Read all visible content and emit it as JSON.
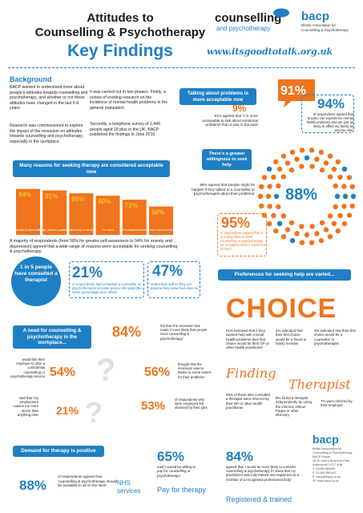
{
  "header": {
    "title_line1": "Attitudes to",
    "title_line2": "Counselling & Psychotherapy",
    "subtitle": "Key Findings",
    "logo_main": "counselling",
    "logo_sub": "and psychotherapy",
    "bacp": "bacp",
    "bacp_sub1": "British Association for",
    "bacp_sub2": "Counselling & Psychotherapy",
    "url": "www.itsgoodtotalk.org.uk"
  },
  "background": {
    "title": "Background",
    "p1": "BACP wanted to understand more about people's attitudes towards counselling and psychotherapy, and whether or not these attitudes have changed in the last 5-6 years.",
    "p2": "Research was commissioned to explore the impact of the recession on attitudes towards counselling and psychotherapy, especially in the workplace.",
    "p3": "It was carried out in two phases. Firstly, a review of existing research on the incidence of mental health problems in the general population.",
    "p4": "Secondly, a telephone survey of 1,440 people aged 18 plus in the UK. BACP published the findings in June 2010."
  },
  "reasons": {
    "banner": "Many reasons for seeking therapy are considered acceptable now",
    "footnote": "A majority of respondents (from 58% for greater self-awareness to 94% for anxiety and depression) agreed that a wide range of reasons were acceptable for seeking counselling & psychotherapy."
  },
  "chart_data": {
    "type": "bar",
    "categories": [
      "Anxiety & depression",
      "Drugs, alcohol or gambling",
      "Relationship breakdown",
      "For stress",
      "Employment issues",
      "Greater self-awareness"
    ],
    "values": [
      94,
      91,
      85,
      80,
      72,
      58
    ],
    "value_labels": [
      "94%",
      "91%",
      "85%",
      "80%",
      "72%",
      "58%"
    ],
    "ylim": [
      0,
      100
    ]
  },
  "talking": {
    "banner": "Talking about problems is more acceptable now",
    "pct_small": "9%",
    "pct_small_text": "91% agreed that 'it is more acceptable to talk about emotional problems than it was in the past'",
    "pct_big": "91%",
    "pct_94": "94%",
    "pct_94_text": "of respondents agreed that 'anyone can experience mental health problems and are just as likely to affect my family as anyone else'"
  },
  "willingness": {
    "banner": "There's a greater willingness to seek help",
    "text": "88% agreed that 'people might be happier if they talked to a counsellor or psychotherapist about their problems'",
    "pct_88": "88%",
    "pct_95": "95%",
    "pct_95_text": "of respondents agreed that 'it is a good idea to seek counselling or psychotherapy for a problem before it gets out of hand'"
  },
  "consulted": {
    "circle": "1 in 5 people have consulted a therapist",
    "pct_21": "21%",
    "pct_21_text": "of respondents had consulted a counsellor or psychotherapist at some point in the past (the same percentage as in 2004)",
    "pct_47": "47%",
    "pct_47_text": "stated that neither they nor anyone they knew had done so"
  },
  "preferences": {
    "banner": "Preferences for seeking help are varied...",
    "choice": "CHOICE",
    "c1": "51% indicated that if they wanted help with mental health problems their first choice would be their GP or other health practitioner",
    "c2": "4% indicated that their first choice would be a friend or family member",
    "c3": "2% indicated that their first choice would be a counsellor or psychotherapist",
    "finding": "Finding",
    "therapist": "Therapist",
    "f1": "65% of those who consulted a therapist were referred by their GP or other health practitioner",
    "f2": "9% found a therapist independently by using the internet, Yellow Pages or other directory",
    "f3": "7% were referred by their employer"
  },
  "workplace": {
    "banner": "A need for counselling & psychotherapy in the workplace...",
    "p84": "84%",
    "p84_text": "felt that 'the recession has made it more likely that people need counselling & psychotherapy'",
    "p54": "54%",
    "p54_text": "would like their employer to offer a confidential counselling or psychotherapy service",
    "p56": "56%",
    "p56_text": "thought that the recession was to blame to some extent for their problems",
    "p21": "21%",
    "p21_text": "said that 'my employment causes me more stress than anything else'",
    "p53": "53%",
    "p53_text": "of respondents who were employed felt stressed by their jobs"
  },
  "demand": {
    "banner": "Demand for therapy is positive",
    "p88": "88%",
    "p88_text": "of respondents agreed that 'counselling & psychotherapy should be available to all on the NHS'",
    "nhs": "NHS services",
    "p65": "65%",
    "p65_text": "said 'I would be willing to pay for counselling or psychotherapy'",
    "pay": "Pay for therapy",
    "p84": "84%",
    "p84_text": "agreed that 'I would be more likely to consider counselling & psychotherapy if I knew that my practitioner was fully trained and registered as a member of a recognised professional body'",
    "registered": "Registered & trained"
  },
  "footer": {
    "bacp": "bacp",
    "lines": [
      "British Association for",
      "Counselling & Psychotherapy",
      "BACP House",
      "15 St John's Business Park",
      "Lutterworth LE17 4HB",
      "T: 01455 883300",
      "F: 01455 550243",
      "E: bacp@bacp.co.uk",
      "W: www.bacp.co.uk"
    ]
  }
}
